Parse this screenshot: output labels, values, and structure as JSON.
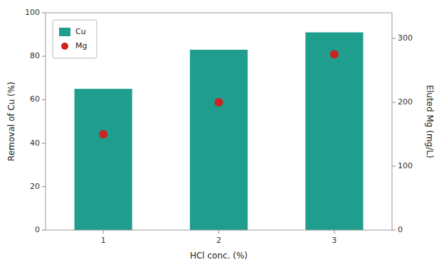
{
  "chart_data": {
    "type": "bar",
    "categories": [
      "1",
      "2",
      "3"
    ],
    "xlabel": "HCl conc. (%)",
    "ylabel": "Removal of Cu (%)",
    "y2label": "Eluted Mg (mg/L)",
    "series": [
      {
        "name": "Cu",
        "type": "bar",
        "color": "#1f9e8e",
        "values": [
          65,
          83,
          91
        ]
      },
      {
        "name": "Mg",
        "type": "scatter",
        "axis": "y2",
        "marker": "circle",
        "color": "#cc2222",
        "values": [
          150,
          200,
          275
        ]
      }
    ],
    "ylim": [
      0,
      100
    ],
    "yticks": [
      0,
      20,
      40,
      60,
      80,
      100
    ],
    "y2lim": [
      0,
      340
    ],
    "y2ticks": [
      0,
      100,
      200,
      300
    ],
    "legend": "upper left"
  }
}
